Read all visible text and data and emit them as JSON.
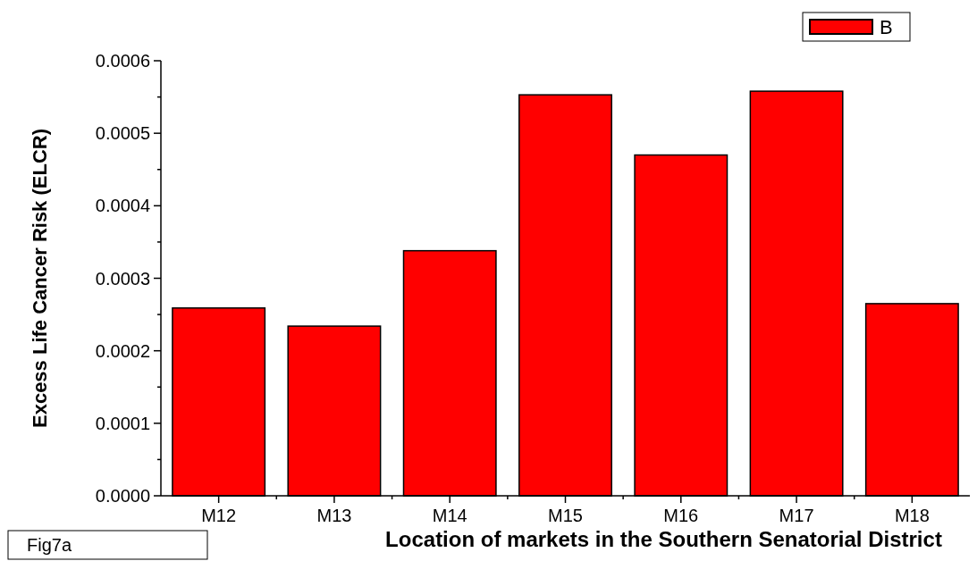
{
  "chart_data": {
    "type": "bar",
    "xlabel": "Location of markets in the Southern Senatorial District",
    "ylabel": "Excess Life Cancer Risk (ELCR)",
    "categories": [
      "M12",
      "M13",
      "M14",
      "M15",
      "M16",
      "M17",
      "M18"
    ],
    "series": [
      {
        "name": "B",
        "color": "#ff0000",
        "values": [
          0.000259,
          0.000234,
          0.000338,
          0.000553,
          0.00047,
          0.000558,
          0.000265
        ]
      }
    ],
    "ylim": [
      0,
      0.0006
    ],
    "yticks": [
      {
        "value": 0,
        "label": "0.0000"
      },
      {
        "value": 0.0001,
        "label": "0.0001"
      },
      {
        "value": 0.0002,
        "label": "0.0002"
      },
      {
        "value": 0.0003,
        "label": "0.0003"
      },
      {
        "value": 0.0004,
        "label": "0.0004"
      },
      {
        "value": 0.0005,
        "label": "0.0005"
      },
      {
        "value": 0.0006,
        "label": "0.0006"
      }
    ],
    "legend": "top right",
    "grid": false,
    "annotations": [
      "Fig7a"
    ]
  }
}
